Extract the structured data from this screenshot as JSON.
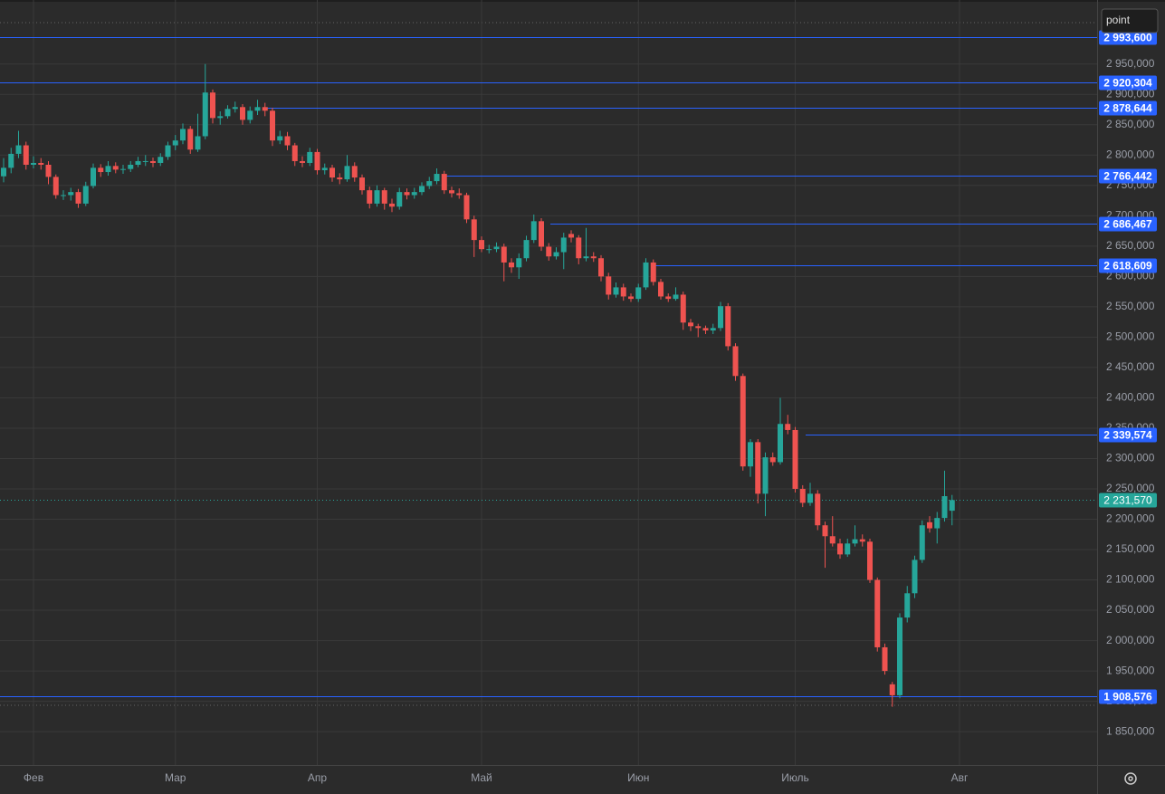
{
  "symbol_input": "point",
  "chart_data": {
    "type": "candlestick",
    "categories": [
      null,
      null,
      null,
      null,
      "Фев",
      null,
      null,
      null,
      null,
      null,
      null,
      null,
      null,
      null,
      null,
      null,
      null,
      null,
      null,
      null,
      null,
      null,
      null,
      "Мар",
      null,
      null,
      null,
      null,
      null,
      null,
      null,
      null,
      null,
      null,
      null,
      null,
      null,
      null,
      null,
      null,
      null,
      null,
      "Апр",
      null,
      null,
      null,
      null,
      null,
      null,
      null,
      null,
      null,
      null,
      null,
      null,
      null,
      null,
      null,
      null,
      null,
      null,
      null,
      null,
      null,
      "Май",
      null,
      null,
      null,
      null,
      null,
      null,
      null,
      null,
      null,
      null,
      null,
      null,
      null,
      null,
      null,
      null,
      null,
      null,
      null,
      null,
      "Июн",
      null,
      null,
      null,
      null,
      null,
      null,
      null,
      null,
      null,
      null,
      null,
      null,
      null,
      null,
      null,
      null,
      null,
      null,
      null,
      null,
      "Июль",
      null,
      null,
      null,
      null,
      null,
      null,
      null,
      null,
      null,
      null,
      null,
      null,
      null,
      null,
      null,
      null,
      null,
      null,
      null,
      null,
      null,
      "Авг"
    ],
    "open": [
      2765,
      2779,
      2802,
      2816,
      2784,
      2787,
      2784,
      2764,
      2733,
      2734,
      2739,
      2720,
      2749,
      2779,
      2772,
      2782,
      2776,
      2777,
      2784,
      2789,
      2790,
      2787,
      2797,
      2816,
      2824,
      2843,
      2809,
      2831,
      2903,
      2861,
      2864,
      2876,
      2879,
      2858,
      2873,
      2879,
      2873,
      2824,
      2831,
      2816,
      2790,
      2787,
      2805,
      2775,
      2779,
      2763,
      2760,
      2782,
      2763,
      2742,
      2720,
      2742,
      2720,
      2715,
      2739,
      2734,
      2739,
      2749,
      2757,
      2769,
      2742,
      2737,
      2734,
      2694,
      2660,
      2644,
      2645,
      2649,
      2623,
      2615,
      2630,
      2660,
      2691,
      2649,
      2633,
      2640,
      2670,
      2664,
      2630,
      2633,
      2630,
      2600,
      2570,
      2582,
      2567,
      2563,
      2582,
      2623,
      2591,
      2567,
      2563,
      2570,
      2524,
      2518,
      2515,
      2511,
      2515,
      2551,
      2485,
      2436,
      2287,
      2327,
      2242,
      2302,
      2294,
      2357,
      2347,
      2250,
      2227,
      2242,
      2190,
      2172,
      2160,
      2142,
      2160,
      2167,
      2163,
      2100,
      1989,
      1928,
      1910,
      2038,
      2078,
      2133,
      2195,
      2185,
      2202,
      2214,
      null
    ],
    "high": [
      2795,
      2812,
      2840,
      2822,
      2798,
      2795,
      2790,
      2768,
      2742,
      2746,
      2744,
      2756,
      2786,
      2785,
      2790,
      2788,
      2784,
      2790,
      2797,
      2800,
      2796,
      2803,
      2822,
      2833,
      2852,
      2848,
      2868,
      2950,
      2908,
      2872,
      2882,
      2888,
      2884,
      2880,
      2891,
      2886,
      2878,
      2840,
      2838,
      2820,
      2798,
      2812,
      2810,
      2786,
      2784,
      2770,
      2800,
      2788,
      2768,
      2748,
      2750,
      2746,
      2728,
      2746,
      2745,
      2746,
      2755,
      2764,
      2778,
      2774,
      2748,
      2745,
      2738,
      2700,
      2666,
      2652,
      2656,
      2654,
      2630,
      2638,
      2667,
      2702,
      2696,
      2655,
      2648,
      2672,
      2676,
      2668,
      2680,
      2640,
      2635,
      2606,
      2590,
      2588,
      2572,
      2588,
      2630,
      2628,
      2596,
      2572,
      2582,
      2575,
      2530,
      2522,
      2519,
      2522,
      2558,
      2556,
      2490,
      2440,
      2332,
      2332,
      2310,
      2310,
      2400,
      2372,
      2352,
      2256,
      2260,
      2248,
      2196,
      2205,
      2168,
      2168,
      2190,
      2175,
      2168,
      2104,
      1995,
      1932,
      2045,
      2090,
      2140,
      2198,
      2205,
      2212,
      2280,
      2240,
      null
    ],
    "low": [
      2755,
      2770,
      2795,
      2776,
      2778,
      2776,
      2752,
      2728,
      2726,
      2725,
      2713,
      2716,
      2745,
      2764,
      2766,
      2770,
      2769,
      2772,
      2780,
      2782,
      2780,
      2782,
      2792,
      2808,
      2818,
      2802,
      2805,
      2826,
      2852,
      2850,
      2860,
      2870,
      2850,
      2852,
      2866,
      2864,
      2815,
      2818,
      2808,
      2782,
      2780,
      2782,
      2768,
      2768,
      2756,
      2752,
      2756,
      2756,
      2735,
      2712,
      2715,
      2710,
      2706,
      2710,
      2727,
      2728,
      2734,
      2744,
      2752,
      2736,
      2730,
      2728,
      2688,
      2632,
      2640,
      2638,
      2640,
      2592,
      2606,
      2596,
      2625,
      2655,
      2642,
      2626,
      2628,
      2612,
      2656,
      2620,
      2625,
      2624,
      2592,
      2562,
      2565,
      2560,
      2558,
      2558,
      2578,
      2585,
      2562,
      2558,
      2560,
      2512,
      2510,
      2500,
      2505,
      2505,
      2510,
      2478,
      2428,
      2280,
      2270,
      2226,
      2205,
      2288,
      2290,
      2340,
      2244,
      2220,
      2222,
      2182,
      2120,
      2155,
      2135,
      2138,
      2155,
      2155,
      2095,
      1982,
      1944,
      1891,
      1905,
      2030,
      2070,
      2128,
      2178,
      2160,
      2196,
      2190,
      null
    ],
    "close": [
      2779,
      2802,
      2816,
      2784,
      2787,
      2784,
      2764,
      2734,
      2734,
      2739,
      2720,
      2749,
      2779,
      2772,
      2782,
      2776,
      2777,
      2784,
      2790,
      2790,
      2787,
      2797,
      2816,
      2824,
      2843,
      2809,
      2831,
      2903,
      2861,
      2864,
      2876,
      2879,
      2858,
      2873,
      2879,
      2873,
      2824,
      2831,
      2816,
      2790,
      2787,
      2805,
      2775,
      2779,
      2763,
      2760,
      2782,
      2763,
      2742,
      2720,
      2742,
      2720,
      2715,
      2739,
      2734,
      2739,
      2749,
      2757,
      2769,
      2742,
      2737,
      2734,
      2694,
      2660,
      2645,
      2645,
      2649,
      2623,
      2615,
      2630,
      2660,
      2691,
      2649,
      2633,
      2640,
      2664,
      2664,
      2630,
      2633,
      2630,
      2600,
      2570,
      2582,
      2567,
      2563,
      2582,
      2623,
      2591,
      2567,
      2563,
      2570,
      2524,
      2518,
      2515,
      2511,
      2515,
      2551,
      2485,
      2436,
      2287,
      2327,
      2242,
      2302,
      2294,
      2357,
      2347,
      2250,
      2227,
      2242,
      2190,
      2172,
      2160,
      2142,
      2160,
      2167,
      2163,
      2100,
      1989,
      1950,
      1910,
      2038,
      2078,
      2133,
      2190,
      2185,
      2202,
      2238,
      2231.57,
      null
    ],
    "up_color": "#26a69a",
    "down_color": "#ef5350",
    "ylim": [
      1798,
      3048
    ],
    "yticks": [
      {
        "value": 1850,
        "label": "1 850,000"
      },
      {
        "value": 1900,
        "label": "1 900,000"
      },
      {
        "value": 1950,
        "label": "1 950,000"
      },
      {
        "value": 2000,
        "label": "2 000,000"
      },
      {
        "value": 2050,
        "label": "2 050,000"
      },
      {
        "value": 2100,
        "label": "2 100,000"
      },
      {
        "value": 2150,
        "label": "2 150,000"
      },
      {
        "value": 2200,
        "label": "2 200,000"
      },
      {
        "value": 2250,
        "label": "2 250,000"
      },
      {
        "value": 2300,
        "label": "2 300,000"
      },
      {
        "value": 2350,
        "label": "2 350,000"
      },
      {
        "value": 2400,
        "label": "2 400,000"
      },
      {
        "value": 2450,
        "label": "2 450,000"
      },
      {
        "value": 2500,
        "label": "2 500,000"
      },
      {
        "value": 2550,
        "label": "2 550,000"
      },
      {
        "value": 2600,
        "label": "2 600,000"
      },
      {
        "value": 2650,
        "label": "2 650,000"
      },
      {
        "value": 2700,
        "label": "2 700,000"
      },
      {
        "value": 2750,
        "label": "2 750,000"
      },
      {
        "value": 2800,
        "label": "2 800,000"
      },
      {
        "value": 2850,
        "label": "2 850,000"
      },
      {
        "value": 2900,
        "label": "2 900,000"
      },
      {
        "value": 2950,
        "label": "2 950,000"
      }
    ],
    "grid": true,
    "levels": [
      {
        "value": 2993.6,
        "label": "2 993,600"
      },
      {
        "value": 2920.304,
        "label": "2 920,304"
      },
      {
        "value": 2878.644,
        "label": "2 878,644"
      },
      {
        "value": 2766.442,
        "label": "2 766,442"
      },
      {
        "value": 2686.467,
        "label": "2 686,467"
      },
      {
        "value": 2618.609,
        "label": "2 618,609"
      },
      {
        "value": 2339.574,
        "label": "2 339,574"
      },
      {
        "value": 1908.576,
        "label": "1 908,576"
      }
    ],
    "level_color": "#2962ff",
    "last_price": {
      "value": 2231.57,
      "label": "2 231,570"
    }
  }
}
